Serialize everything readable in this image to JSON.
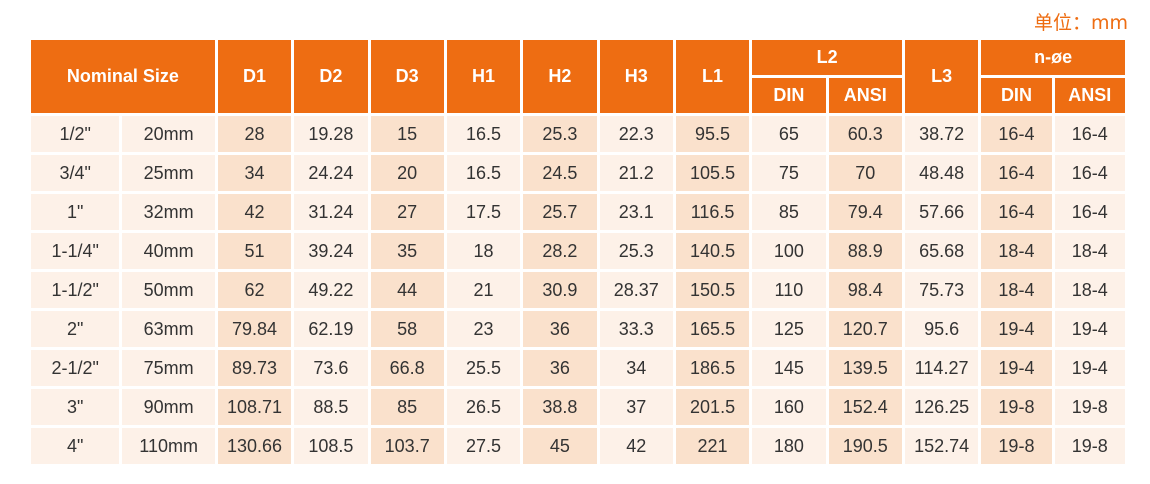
{
  "unit_label": "单位：mm",
  "colors": {
    "header_bg": "#ee6d12",
    "header_text": "#ffffff",
    "cell_pale": "#fdf1e8",
    "cell_dark": "#fae1cc",
    "accent": "#ee6d12"
  },
  "header": {
    "nominal_size": "Nominal Size",
    "d1": "D1",
    "d2": "D2",
    "d3": "D3",
    "h1": "H1",
    "h2": "H2",
    "h3": "H3",
    "l1": "L1",
    "l2": "L2",
    "l2_din": "DIN",
    "l2_ansi": "ANSI",
    "l3": "L3",
    "n_oe": "n-øe",
    "n_oe_din": "DIN",
    "n_oe_ansi": "ANSI"
  },
  "rows": [
    [
      "1/2\"",
      "20mm",
      "28",
      "19.28",
      "15",
      "16.5",
      "25.3",
      "22.3",
      "95.5",
      "65",
      "60.3",
      "38.72",
      "16-4",
      "16-4"
    ],
    [
      "3/4\"",
      "25mm",
      "34",
      "24.24",
      "20",
      "16.5",
      "24.5",
      "21.2",
      "105.5",
      "75",
      "70",
      "48.48",
      "16-4",
      "16-4"
    ],
    [
      "1\"",
      "32mm",
      "42",
      "31.24",
      "27",
      "17.5",
      "25.7",
      "23.1",
      "116.5",
      "85",
      "79.4",
      "57.66",
      "16-4",
      "16-4"
    ],
    [
      "1-1/4\"",
      "40mm",
      "51",
      "39.24",
      "35",
      "18",
      "28.2",
      "25.3",
      "140.5",
      "100",
      "88.9",
      "65.68",
      "18-4",
      "18-4"
    ],
    [
      "1-1/2\"",
      "50mm",
      "62",
      "49.22",
      "44",
      "21",
      "30.9",
      "28.37",
      "150.5",
      "110",
      "98.4",
      "75.73",
      "18-4",
      "18-4"
    ],
    [
      "2\"",
      "63mm",
      "79.84",
      "62.19",
      "58",
      "23",
      "36",
      "33.3",
      "165.5",
      "125",
      "120.7",
      "95.6",
      "19-4",
      "19-4"
    ],
    [
      "2-1/2\"",
      "75mm",
      "89.73",
      "73.6",
      "66.8",
      "25.5",
      "36",
      "34",
      "186.5",
      "145",
      "139.5",
      "114.27",
      "19-4",
      "19-4"
    ],
    [
      "3\"",
      "90mm",
      "108.71",
      "88.5",
      "85",
      "26.5",
      "38.8",
      "37",
      "201.5",
      "160",
      "152.4",
      "126.25",
      "19-8",
      "19-8"
    ],
    [
      "4\"",
      "110mm",
      "130.66",
      "108.5",
      "103.7",
      "27.5",
      "45",
      "42",
      "221",
      "180",
      "190.5",
      "152.74",
      "19-8",
      "19-8"
    ]
  ]
}
